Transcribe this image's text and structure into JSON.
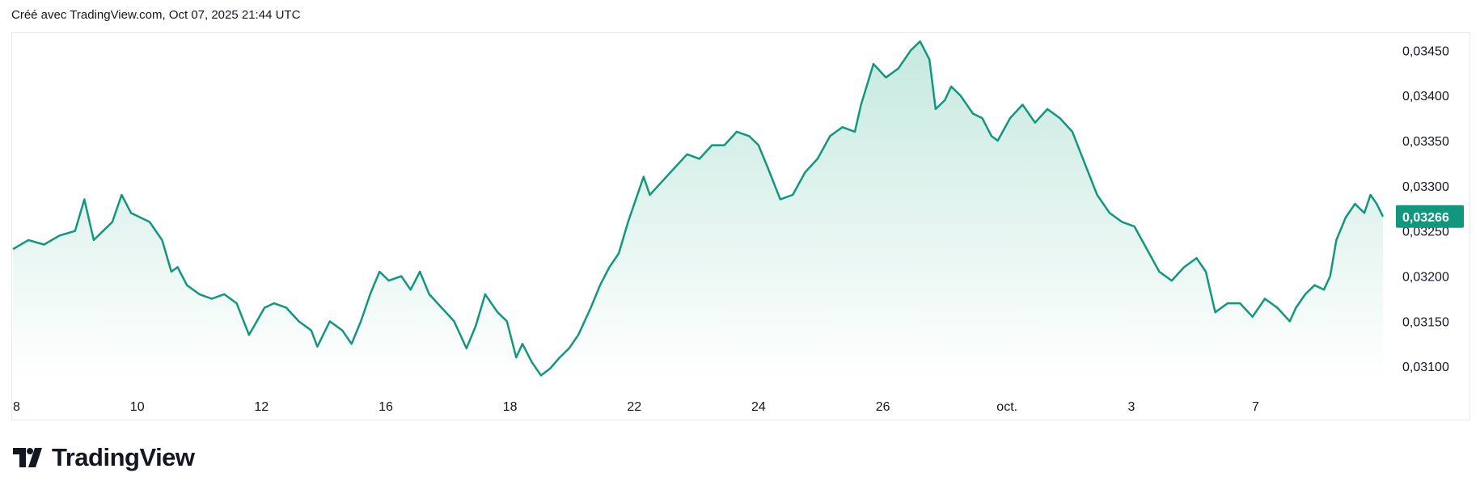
{
  "caption": "Créé avec TradingView.com, Oct 07, 2025 21:44 UTC",
  "brand": {
    "name": "TradingView",
    "logo_icon": "tradingview-logo-icon"
  },
  "colors": {
    "line": "#12977f",
    "fill_top": "#c6e9df",
    "fill_bottom": "#ffffff",
    "price_tag": "#12977f",
    "text": "#131722",
    "border": "#e6e8ee"
  },
  "chart_data": {
    "type": "area",
    "title": "",
    "xlabel": "",
    "ylabel": "",
    "ylim": [
      0.03085,
      0.0347
    ],
    "y_ticks": [
      {
        "value": 0.031,
        "label": "0,03100"
      },
      {
        "value": 0.0315,
        "label": "0,03150"
      },
      {
        "value": 0.032,
        "label": "0,03200"
      },
      {
        "value": 0.0325,
        "label": "0,03250"
      },
      {
        "value": 0.033,
        "label": "0,03300"
      },
      {
        "value": 0.0335,
        "label": "0,03350"
      },
      {
        "value": 0.034,
        "label": "0,03400"
      },
      {
        "value": 0.0345,
        "label": "0,03450"
      }
    ],
    "x_ticks": [
      {
        "x": 0,
        "label": "8"
      },
      {
        "x": 2,
        "label": "10"
      },
      {
        "x": 4,
        "label": "12"
      },
      {
        "x": 6,
        "label": "16"
      },
      {
        "x": 8,
        "label": "18"
      },
      {
        "x": 10,
        "label": "22"
      },
      {
        "x": 12,
        "label": "24"
      },
      {
        "x": 14,
        "label": "26"
      },
      {
        "x": 16,
        "label": "oct."
      },
      {
        "x": 18,
        "label": "3"
      },
      {
        "x": 20,
        "label": "7"
      }
    ],
    "x_range": [
      0,
      22.05
    ],
    "last_price": {
      "value": 0.03266,
      "label": "0,03266"
    },
    "grid": false,
    "series": [
      {
        "x": [
          0,
          0.25,
          0.5,
          0.75,
          1.0,
          1.15,
          1.3,
          1.45,
          1.6,
          1.75,
          1.9,
          2.05,
          2.2,
          2.4,
          2.55,
          2.65,
          2.8,
          3.0,
          3.2,
          3.4,
          3.6,
          3.8,
          4.05,
          4.2,
          4.4,
          4.6,
          4.8,
          4.9,
          5.1,
          5.3,
          5.45,
          5.6,
          5.75,
          5.9,
          6.05,
          6.25,
          6.4,
          6.55,
          6.7,
          6.9,
          7.1,
          7.3,
          7.45,
          7.6,
          7.8,
          7.95,
          8.1,
          8.2,
          8.35,
          8.5,
          8.65,
          8.8,
          8.95,
          9.1,
          9.3,
          9.45,
          9.6,
          9.75,
          9.9,
          10.05,
          10.15,
          10.25,
          10.45,
          10.65,
          10.85,
          11.05,
          11.25,
          11.45,
          11.65,
          11.85,
          12.0,
          12.15,
          12.35,
          12.55,
          12.75,
          12.95,
          13.15,
          13.35,
          13.55,
          13.65,
          13.85,
          14.05,
          14.25,
          14.45,
          14.6,
          14.75,
          14.85,
          15.0,
          15.1,
          15.25,
          15.45,
          15.6,
          15.75,
          15.85,
          16.05,
          16.25,
          16.45,
          16.65,
          16.85,
          17.05,
          17.25,
          17.45,
          17.65,
          17.85,
          18.05,
          18.25,
          18.45,
          18.65,
          18.85,
          19.05,
          19.2,
          19.35,
          19.55,
          19.75,
          19.95,
          20.15,
          20.35,
          20.55,
          20.65,
          20.8,
          20.95,
          21.1,
          21.2,
          21.3,
          21.45,
          21.6,
          21.75,
          21.85,
          21.95,
          22.05
        ],
        "y": [
          0.0323,
          0.0324,
          0.03235,
          0.03245,
          0.0325,
          0.03285,
          0.0324,
          0.0325,
          0.0326,
          0.0329,
          0.0327,
          0.03265,
          0.0326,
          0.0324,
          0.03205,
          0.0321,
          0.0319,
          0.0318,
          0.03175,
          0.0318,
          0.0317,
          0.03135,
          0.03165,
          0.0317,
          0.03165,
          0.0315,
          0.0314,
          0.03122,
          0.0315,
          0.0314,
          0.03125,
          0.0315,
          0.0318,
          0.03205,
          0.03195,
          0.032,
          0.03185,
          0.03205,
          0.0318,
          0.03165,
          0.0315,
          0.0312,
          0.03145,
          0.0318,
          0.0316,
          0.0315,
          0.0311,
          0.03125,
          0.03105,
          0.0309,
          0.03098,
          0.0311,
          0.0312,
          0.03135,
          0.03165,
          0.0319,
          0.0321,
          0.03225,
          0.0326,
          0.0329,
          0.0331,
          0.0329,
          0.03305,
          0.0332,
          0.03335,
          0.0333,
          0.03345,
          0.03345,
          0.0336,
          0.03355,
          0.03345,
          0.0332,
          0.03285,
          0.0329,
          0.03315,
          0.0333,
          0.03355,
          0.03365,
          0.0336,
          0.0339,
          0.03435,
          0.0342,
          0.0343,
          0.0345,
          0.0346,
          0.0344,
          0.03385,
          0.03395,
          0.0341,
          0.034,
          0.0338,
          0.03375,
          0.03355,
          0.0335,
          0.03375,
          0.0339,
          0.0337,
          0.03385,
          0.03375,
          0.0336,
          0.03325,
          0.0329,
          0.0327,
          0.0326,
          0.03255,
          0.0323,
          0.03205,
          0.03195,
          0.0321,
          0.0322,
          0.03205,
          0.0316,
          0.0317,
          0.0317,
          0.03155,
          0.03175,
          0.03165,
          0.0315,
          0.03165,
          0.0318,
          0.0319,
          0.03185,
          0.032,
          0.0324,
          0.03265,
          0.0328,
          0.0327,
          0.0329,
          0.0328,
          0.03266
        ]
      }
    ]
  }
}
